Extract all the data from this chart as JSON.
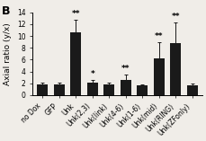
{
  "categories": [
    "no Dox",
    "GFP",
    "Unk",
    "Unk(2,3)",
    "Unk(link)",
    "Unk(4-6)",
    "Unk(1-6)",
    "Unk(mid)",
    "Unk(RING)",
    "Unk(ZFonly)"
  ],
  "values": [
    1.8,
    1.8,
    10.6,
    2.15,
    1.8,
    2.6,
    1.6,
    6.2,
    8.8,
    1.7
  ],
  "errors": [
    0.35,
    0.3,
    2.2,
    0.5,
    0.3,
    0.9,
    0.25,
    2.8,
    3.5,
    0.25
  ],
  "bar_color": "#1a1a1a",
  "error_color": "#1a1a1a",
  "significance": [
    "",
    "",
    "**",
    "*",
    "",
    "**",
    "",
    "**",
    "**",
    ""
  ],
  "ylabel": "Axial ratio (y/x)",
  "ylim": [
    0,
    14
  ],
  "yticks": [
    0,
    2,
    4,
    6,
    8,
    10,
    12,
    14
  ],
  "title": "B",
  "background_color": "#f0ede8",
  "fig_width": 2.29,
  "fig_height": 1.57,
  "label_fontsize": 5.5,
  "ylabel_fontsize": 6.5,
  "tick_fontsize": 5.5,
  "sig_fontsize": 6.5
}
